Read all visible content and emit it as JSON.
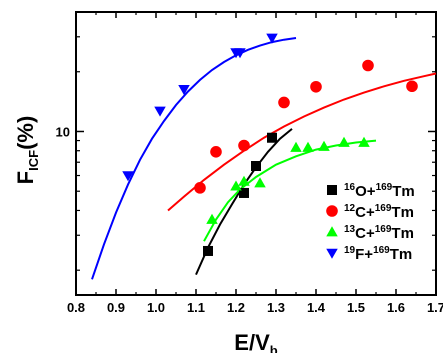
{
  "chart_data": {
    "type": "scatter",
    "x_axis": {
      "label_main": "E/V",
      "label_sub": "b",
      "range": [
        0.8,
        1.7
      ],
      "tick_values": [
        0.8,
        0.9,
        1.0,
        1.1,
        1.2,
        1.3,
        1.4,
        1.5,
        1.6,
        1.7
      ],
      "tick_labels": [
        "0.8",
        "0.9",
        "1.0",
        "1.1",
        "1.2",
        "1.3",
        "1.4",
        "1.5",
        "1.6",
        "1.7"
      ]
    },
    "y_axis": {
      "label_main": "F",
      "label_sub": "ICF",
      "label_suffix": "(%)",
      "scale": "log",
      "range": [
        1.5,
        40
      ],
      "tick_values": [
        10
      ],
      "tick_labels": [
        "10"
      ],
      "minor_ticks": [
        2,
        3,
        4,
        5,
        6,
        7,
        8,
        9,
        20,
        30,
        40
      ]
    },
    "grid": false,
    "legend_position": "lower-right",
    "series": [
      {
        "key": "O16",
        "legend": {
          "mass": "16",
          "proj": "O+",
          "target_mass": "169",
          "target": "Tm"
        },
        "marker": "square",
        "color": "#000000",
        "x": [
          1.13,
          1.22,
          1.25,
          1.29
        ],
        "y": [
          2.5,
          4.9,
          6.7,
          9.3
        ],
        "fit_x": [
          1.1,
          1.13,
          1.16,
          1.19,
          1.22,
          1.25,
          1.28,
          1.31,
          1.34
        ],
        "fit_y": [
          1.9,
          2.6,
          3.4,
          4.3,
          5.4,
          6.6,
          7.9,
          9.2,
          10.3
        ]
      },
      {
        "key": "C12",
        "legend": {
          "mass": "12",
          "proj": "C+",
          "target_mass": "169",
          "target": "Tm"
        },
        "marker": "circle",
        "color": "#ff0000",
        "x": [
          1.11,
          1.15,
          1.22,
          1.32,
          1.4,
          1.53,
          1.64
        ],
        "y": [
          5.2,
          7.9,
          8.5,
          14.0,
          16.8,
          21.5,
          16.9
        ],
        "fit_x": [
          1.03,
          1.07,
          1.12,
          1.17,
          1.22,
          1.27,
          1.32,
          1.37,
          1.42,
          1.47,
          1.52,
          1.57,
          1.62,
          1.67,
          1.7
        ],
        "fit_y": [
          4.0,
          4.7,
          5.7,
          6.8,
          8.0,
          9.3,
          10.6,
          11.9,
          13.2,
          14.5,
          15.7,
          16.9,
          18.0,
          19.0,
          19.6
        ]
      },
      {
        "key": "C13",
        "legend": {
          "mass": "13",
          "proj": "C+",
          "target_mass": "169",
          "target": "Tm"
        },
        "marker": "triangle-up",
        "color": "#00ff00",
        "x": [
          1.14,
          1.2,
          1.22,
          1.26,
          1.35,
          1.38,
          1.42,
          1.47,
          1.52
        ],
        "y": [
          3.6,
          5.3,
          5.6,
          5.5,
          8.3,
          8.3,
          8.4,
          8.8,
          8.8
        ],
        "fit_x": [
          1.12,
          1.15,
          1.18,
          1.21,
          1.25,
          1.3,
          1.35,
          1.4,
          1.45,
          1.5,
          1.55
        ],
        "fit_y": [
          2.8,
          3.6,
          4.4,
          5.1,
          5.9,
          6.8,
          7.5,
          8.1,
          8.5,
          8.8,
          9.0
        ]
      },
      {
        "key": "F19",
        "legend": {
          "mass": "19",
          "proj": "F+",
          "target_mass": "169",
          "target": "Tm"
        },
        "marker": "triangle-down",
        "color": "#0000ff",
        "x": [
          0.93,
          1.01,
          1.07,
          1.2,
          1.21,
          1.29
        ],
        "y": [
          6.0,
          12.7,
          16.3,
          25.0,
          25.0,
          29.6
        ],
        "fit_x": [
          0.84,
          0.87,
          0.9,
          0.93,
          0.96,
          0.99,
          1.02,
          1.05,
          1.08,
          1.11,
          1.14,
          1.17,
          1.2,
          1.23,
          1.26,
          1.29,
          1.32,
          1.35
        ],
        "fit_y": [
          1.8,
          2.7,
          3.9,
          5.4,
          7.2,
          9.2,
          11.3,
          13.6,
          15.9,
          18.2,
          20.4,
          22.4,
          24.2,
          25.8,
          27.1,
          28.2,
          29.0,
          29.6
        ]
      }
    ]
  }
}
